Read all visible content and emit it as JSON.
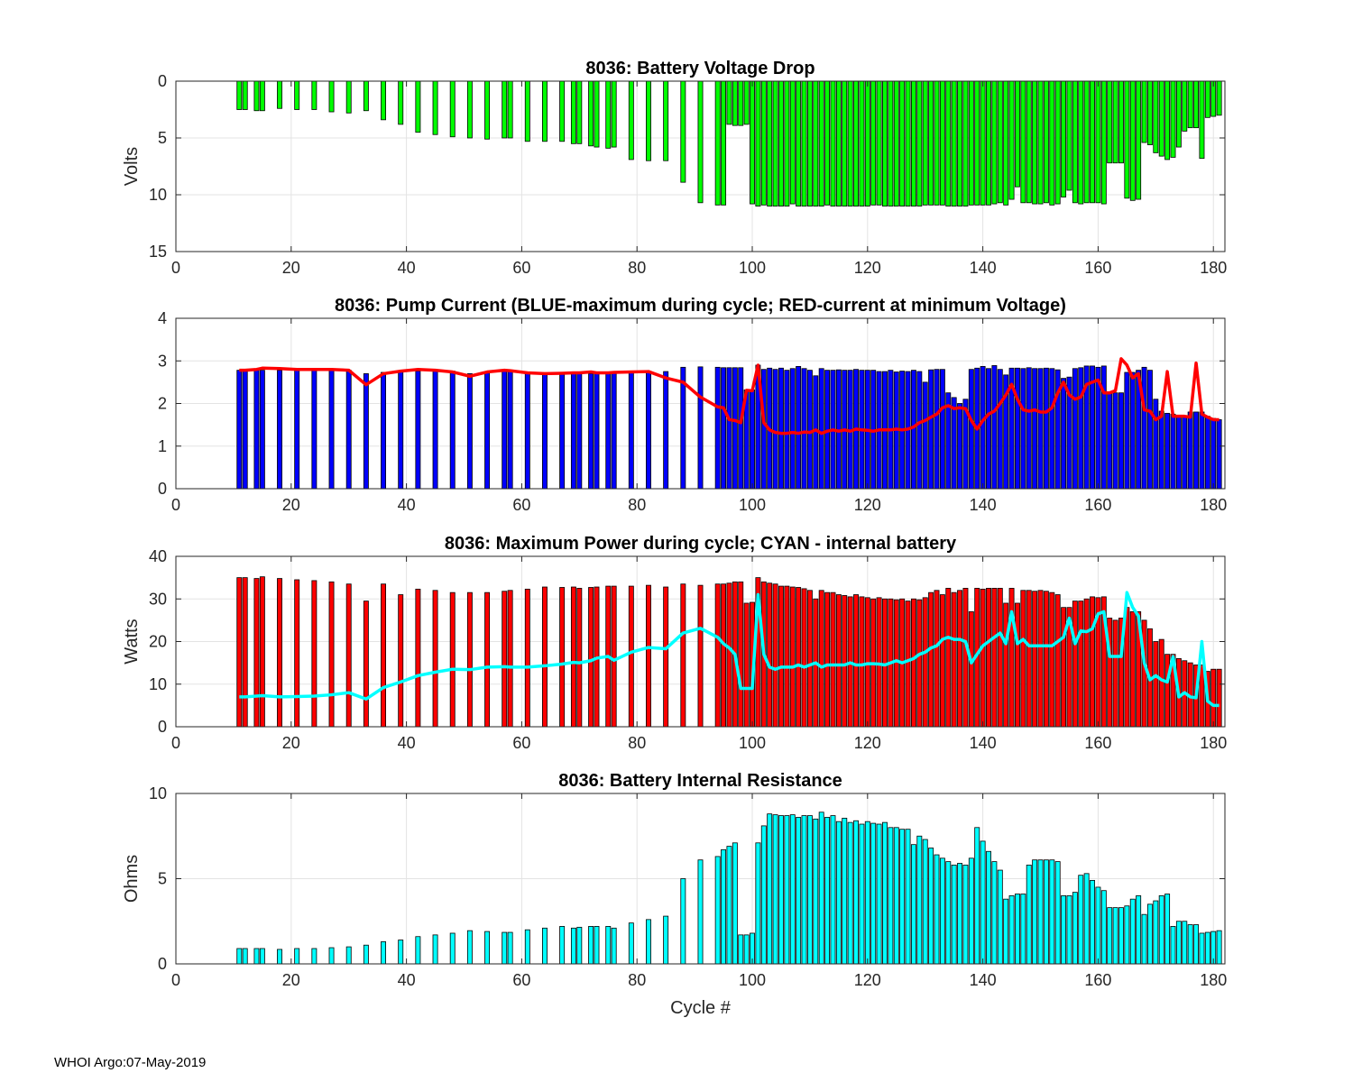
{
  "footer": "WHOI Argo:07-May-2019",
  "xlabel": "Cycle #",
  "chart_data": [
    {
      "type": "bar",
      "title": "8036: Battery Voltage Drop",
      "ylabel": "Volts",
      "xlim": [
        0,
        182
      ],
      "ylim": [
        0,
        15
      ],
      "y_reversed": true,
      "xticks": [
        0,
        20,
        40,
        60,
        80,
        100,
        120,
        140,
        160,
        180
      ],
      "yticks": [
        0,
        5,
        10,
        15
      ],
      "grid": true,
      "bar_color": "#00ff00",
      "x": [
        11,
        12,
        14,
        15,
        18,
        21,
        24,
        27,
        30,
        33,
        36,
        39,
        42,
        45,
        48,
        51,
        54,
        57,
        58,
        61,
        64,
        67,
        69,
        70,
        72,
        73,
        75,
        76,
        79,
        82,
        85,
        88,
        91,
        94,
        95,
        96,
        97,
        98,
        99,
        100,
        101,
        102,
        103,
        104,
        105,
        106,
        107,
        108,
        109,
        110,
        111,
        112,
        113,
        114,
        115,
        116,
        117,
        118,
        119,
        120,
        121,
        122,
        123,
        124,
        125,
        126,
        127,
        128,
        129,
        130,
        131,
        132,
        133,
        134,
        135,
        136,
        137,
        138,
        139,
        140,
        141,
        142,
        143,
        144,
        145,
        146,
        147,
        148,
        149,
        150,
        151,
        152,
        153,
        154,
        155,
        156,
        157,
        158,
        159,
        160,
        161,
        162,
        163,
        164,
        165,
        166,
        167,
        168,
        169,
        170,
        171,
        172,
        173,
        174,
        175,
        176,
        177,
        178,
        179,
        180,
        181
      ],
      "values": [
        2.5,
        2.5,
        2.6,
        2.6,
        2.4,
        2.5,
        2.5,
        2.7,
        2.8,
        2.6,
        3.4,
        3.8,
        4.5,
        4.7,
        4.9,
        5.0,
        5.1,
        5.0,
        5.0,
        5.3,
        5.3,
        5.3,
        5.5,
        5.5,
        5.7,
        5.8,
        5.9,
        5.8,
        6.9,
        7.0,
        7.0,
        8.9,
        10.7,
        10.9,
        10.9,
        3.8,
        3.9,
        3.9,
        3.8,
        10.8,
        11.0,
        10.9,
        11.0,
        11.0,
        11.0,
        11.0,
        10.8,
        11.0,
        11.0,
        11.0,
        11.0,
        11.0,
        10.9,
        11.0,
        11.0,
        11.0,
        11.0,
        11.0,
        11.0,
        11.0,
        10.9,
        10.9,
        11.0,
        11.0,
        11.0,
        11.0,
        11.0,
        11.0,
        11.0,
        10.9,
        10.9,
        10.9,
        10.9,
        11.0,
        11.0,
        11.0,
        11.0,
        10.9,
        10.9,
        10.9,
        10.9,
        10.8,
        10.7,
        10.9,
        10.4,
        9.3,
        10.7,
        10.7,
        10.8,
        10.8,
        10.7,
        10.9,
        10.8,
        10.2,
        9.6,
        10.7,
        10.8,
        10.7,
        10.7,
        10.7,
        10.8,
        7.2,
        7.2,
        7.2,
        10.3,
        10.5,
        10.4,
        5.4,
        5.6,
        6.3,
        6.6,
        6.9,
        6.7,
        5.8,
        4.4,
        4.1,
        4.1,
        6.8,
        3.2,
        3.1,
        3.0
      ]
    },
    {
      "type": "bar",
      "title": "8036: Pump Current (BLUE-maximum during cycle; RED-current at minimum Voltage)",
      "ylabel": "",
      "xlim": [
        0,
        182
      ],
      "ylim": [
        0,
        4
      ],
      "xticks": [
        0,
        20,
        40,
        60,
        80,
        100,
        120,
        140,
        160,
        180
      ],
      "yticks": [
        0,
        1,
        2,
        3,
        4
      ],
      "grid": true,
      "bar_color": "#0000ff",
      "line_color": "#ff0000",
      "x": [
        11,
        12,
        14,
        15,
        18,
        21,
        24,
        27,
        30,
        33,
        36,
        39,
        42,
        45,
        48,
        51,
        54,
        57,
        58,
        61,
        64,
        67,
        69,
        70,
        72,
        73,
        75,
        76,
        79,
        82,
        85,
        88,
        91,
        94,
        95,
        96,
        97,
        98,
        99,
        100,
        101,
        102,
        103,
        104,
        105,
        106,
        107,
        108,
        109,
        110,
        111,
        112,
        113,
        114,
        115,
        116,
        117,
        118,
        119,
        120,
        121,
        122,
        123,
        124,
        125,
        126,
        127,
        128,
        129,
        130,
        131,
        132,
        133,
        134,
        135,
        136,
        137,
        138,
        139,
        140,
        141,
        142,
        143,
        144,
        145,
        146,
        147,
        148,
        149,
        150,
        151,
        152,
        153,
        154,
        155,
        156,
        157,
        158,
        159,
        160,
        161,
        162,
        163,
        164,
        165,
        166,
        167,
        168,
        169,
        170,
        171,
        172,
        173,
        174,
        175,
        176,
        177,
        178,
        179,
        180,
        181
      ],
      "values": [
        2.78,
        2.78,
        2.78,
        2.78,
        2.78,
        2.78,
        2.78,
        2.78,
        2.78,
        2.7,
        2.73,
        2.75,
        2.76,
        2.76,
        2.76,
        2.7,
        2.75,
        2.76,
        2.76,
        2.74,
        2.72,
        2.71,
        2.7,
        2.7,
        2.7,
        2.72,
        2.72,
        2.73,
        2.74,
        2.75,
        2.75,
        2.85,
        2.86,
        2.85,
        2.84,
        2.84,
        2.84,
        2.84,
        2.32,
        2.32,
        2.9,
        2.8,
        2.83,
        2.8,
        2.83,
        2.78,
        2.82,
        2.87,
        2.82,
        2.78,
        2.65,
        2.82,
        2.78,
        2.78,
        2.79,
        2.78,
        2.78,
        2.8,
        2.78,
        2.78,
        2.78,
        2.75,
        2.75,
        2.78,
        2.74,
        2.76,
        2.75,
        2.78,
        2.75,
        2.5,
        2.79,
        2.8,
        2.8,
        2.25,
        2.14,
        2.0,
        2.1,
        2.8,
        2.83,
        2.87,
        2.82,
        2.89,
        2.8,
        2.67,
        2.83,
        2.83,
        2.82,
        2.84,
        2.82,
        2.82,
        2.83,
        2.82,
        2.79,
        2.59,
        2.62,
        2.82,
        2.84,
        2.88,
        2.88,
        2.85,
        2.88,
        2.27,
        2.25,
        2.25,
        2.73,
        2.73,
        2.78,
        2.85,
        2.78,
        2.1,
        1.82,
        1.77,
        1.75,
        1.7,
        1.69,
        1.8,
        1.8,
        1.8,
        1.7,
        1.65,
        1.62
      ],
      "line": [
        2.78,
        2.78,
        2.8,
        2.83,
        2.82,
        2.8,
        2.8,
        2.8,
        2.78,
        2.44,
        2.7,
        2.76,
        2.8,
        2.78,
        2.74,
        2.64,
        2.74,
        2.78,
        2.77,
        2.72,
        2.7,
        2.71,
        2.72,
        2.72,
        2.74,
        2.72,
        2.72,
        2.73,
        2.74,
        2.75,
        2.6,
        2.5,
        2.15,
        1.92,
        1.9,
        1.62,
        1.6,
        1.55,
        2.31,
        2.3,
        2.9,
        1.55,
        1.38,
        1.32,
        1.3,
        1.3,
        1.32,
        1.3,
        1.33,
        1.32,
        1.38,
        1.3,
        1.35,
        1.38,
        1.35,
        1.38,
        1.35,
        1.4,
        1.38,
        1.37,
        1.35,
        1.38,
        1.38,
        1.38,
        1.4,
        1.38,
        1.4,
        1.45,
        1.55,
        1.6,
        1.68,
        1.75,
        1.9,
        1.95,
        1.88,
        1.9,
        1.88,
        1.6,
        1.4,
        1.6,
        1.75,
        1.82,
        2.0,
        2.2,
        2.45,
        2.1,
        1.85,
        1.82,
        1.85,
        1.8,
        1.8,
        1.9,
        2.25,
        2.5,
        2.2,
        2.1,
        2.15,
        2.45,
        2.5,
        2.55,
        2.25,
        2.25,
        2.3,
        3.05,
        2.9,
        2.6,
        2.7,
        1.85,
        1.82,
        1.62,
        1.7,
        2.75,
        1.7,
        1.7,
        1.7,
        1.68,
        2.95,
        1.75,
        1.68,
        1.62,
        1.62
      ]
    },
    {
      "type": "bar",
      "title": "8036: Maximum Power during cycle; CYAN - internal battery",
      "ylabel": "Watts",
      "xlim": [
        0,
        182
      ],
      "ylim": [
        0,
        40
      ],
      "xticks": [
        0,
        20,
        40,
        60,
        80,
        100,
        120,
        140,
        160,
        180
      ],
      "yticks": [
        0,
        10,
        20,
        30,
        40
      ],
      "grid": true,
      "bar_color": "#ff0000",
      "line_color": "#00ffff",
      "x": [
        11,
        12,
        14,
        15,
        18,
        21,
        24,
        27,
        30,
        33,
        36,
        39,
        42,
        45,
        48,
        51,
        54,
        57,
        58,
        61,
        64,
        67,
        69,
        70,
        72,
        73,
        75,
        76,
        79,
        82,
        85,
        88,
        91,
        94,
        95,
        96,
        97,
        98,
        99,
        100,
        101,
        102,
        103,
        104,
        105,
        106,
        107,
        108,
        109,
        110,
        111,
        112,
        113,
        114,
        115,
        116,
        117,
        118,
        119,
        120,
        121,
        122,
        123,
        124,
        125,
        126,
        127,
        128,
        129,
        130,
        131,
        132,
        133,
        134,
        135,
        136,
        137,
        138,
        139,
        140,
        141,
        142,
        143,
        144,
        145,
        146,
        147,
        148,
        149,
        150,
        151,
        152,
        153,
        154,
        155,
        156,
        157,
        158,
        159,
        160,
        161,
        162,
        163,
        164,
        165,
        166,
        167,
        168,
        169,
        170,
        171,
        172,
        173,
        174,
        175,
        176,
        177,
        178,
        179,
        180,
        181
      ],
      "values": [
        35,
        35,
        34.8,
        35.2,
        34.8,
        34.5,
        34.3,
        34.0,
        33.5,
        29.5,
        33.5,
        31.0,
        32.3,
        32.0,
        31.5,
        31.5,
        31.5,
        31.8,
        32.0,
        32.3,
        32.8,
        32.7,
        32.8,
        32.5,
        32.7,
        32.8,
        33.0,
        33.0,
        33.0,
        33.2,
        32.8,
        33.5,
        33.2,
        33.5,
        33.5,
        33.7,
        34.0,
        34.0,
        29.0,
        29.2,
        35.0,
        34.0,
        33.7,
        33.5,
        33.0,
        33.0,
        32.8,
        32.7,
        32.4,
        32.0,
        30.0,
        32.0,
        31.5,
        31.5,
        31.0,
        30.8,
        30.5,
        31.0,
        30.5,
        30.3,
        30.0,
        30.3,
        30.0,
        30.0,
        29.8,
        30.0,
        29.5,
        30.0,
        29.8,
        30.3,
        31.5,
        32.0,
        31.0,
        32.5,
        31.5,
        32.0,
        32.5,
        27.0,
        32.5,
        32.3,
        32.5,
        32.5,
        32.5,
        29.0,
        32.5,
        29.0,
        32.0,
        32.0,
        31.8,
        32.0,
        31.8,
        31.5,
        31.0,
        28.0,
        28.0,
        29.5,
        29.5,
        30.0,
        30.5,
        30.3,
        30.5,
        25.5,
        25.0,
        25.5,
        28.0,
        27.0,
        27.0,
        25.0,
        23.0,
        20.0,
        20.5,
        17.0,
        17.0,
        16.0,
        15.5,
        15.0,
        14.5,
        14.5,
        13.0,
        13.5,
        13.5
      ],
      "line": [
        7.0,
        7.0,
        7.2,
        7.3,
        7.0,
        7.1,
        7.2,
        7.5,
        8.0,
        6.5,
        9.2,
        10.5,
        12.0,
        12.8,
        13.5,
        13.4,
        14.0,
        14.1,
        14.0,
        14.0,
        14.3,
        14.7,
        15.1,
        15.0,
        15.5,
        16.1,
        16.5,
        15.6,
        17.5,
        18.6,
        18.3,
        22.0,
        23.1,
        21.0,
        19.5,
        18.5,
        17.0,
        9.0,
        9.0,
        9.0,
        31.0,
        17.0,
        14.0,
        13.5,
        14.0,
        14.0,
        14.0,
        14.5,
        14.0,
        14.5,
        15.0,
        14.0,
        14.5,
        14.5,
        14.5,
        14.5,
        15.0,
        14.5,
        14.5,
        14.8,
        14.8,
        14.7,
        14.5,
        15.0,
        15.5,
        15.0,
        15.5,
        16.0,
        17.0,
        17.5,
        18.5,
        19.0,
        20.5,
        21.0,
        20.5,
        20.5,
        20.0,
        15.0,
        17.0,
        19.0,
        20.0,
        21.0,
        22.0,
        19.5,
        27.0,
        19.5,
        20.5,
        19.0,
        19.0,
        19.0,
        19.0,
        19.0,
        20.0,
        21.0,
        25.5,
        19.5,
        22.5,
        22.3,
        23.0,
        26.5,
        27.0,
        16.5,
        16.5,
        16.5,
        31.5,
        28.0,
        26.0,
        15.0,
        11.0,
        12.0,
        11.0,
        10.5,
        16.5,
        7.0,
        8.0,
        7.0,
        6.8,
        20.0,
        6.0,
        5.0,
        5.0
      ]
    },
    {
      "type": "bar",
      "title": "8036: Battery Internal Resistance",
      "ylabel": "Ohms",
      "xlabel": "Cycle #",
      "xlim": [
        0,
        182
      ],
      "ylim": [
        0,
        10
      ],
      "xticks": [
        0,
        20,
        40,
        60,
        80,
        100,
        120,
        140,
        160,
        180
      ],
      "yticks": [
        0,
        5,
        10
      ],
      "grid": true,
      "bar_color": "#00ffff",
      "x": [
        11,
        12,
        14,
        15,
        18,
        21,
        24,
        27,
        30,
        33,
        36,
        39,
        42,
        45,
        48,
        51,
        54,
        57,
        58,
        61,
        64,
        67,
        69,
        70,
        72,
        73,
        75,
        76,
        79,
        82,
        85,
        88,
        91,
        94,
        95,
        96,
        97,
        98,
        99,
        100,
        101,
        102,
        103,
        104,
        105,
        106,
        107,
        108,
        109,
        110,
        111,
        112,
        113,
        114,
        115,
        116,
        117,
        118,
        119,
        120,
        121,
        122,
        123,
        124,
        125,
        126,
        127,
        128,
        129,
        130,
        131,
        132,
        133,
        134,
        135,
        136,
        137,
        138,
        139,
        140,
        141,
        142,
        143,
        144,
        145,
        146,
        147,
        148,
        149,
        150,
        151,
        152,
        153,
        154,
        155,
        156,
        157,
        158,
        159,
        160,
        161,
        162,
        163,
        164,
        165,
        166,
        167,
        168,
        169,
        170,
        171,
        172,
        173,
        174,
        175,
        176,
        177,
        178,
        179,
        180,
        181
      ],
      "values": [
        0.9,
        0.9,
        0.9,
        0.9,
        0.85,
        0.9,
        0.9,
        0.95,
        1.0,
        1.1,
        1.3,
        1.4,
        1.6,
        1.7,
        1.8,
        1.95,
        1.9,
        1.85,
        1.85,
        2.0,
        2.1,
        2.2,
        2.1,
        2.15,
        2.2,
        2.2,
        2.2,
        2.1,
        2.4,
        2.6,
        2.8,
        5.0,
        6.1,
        6.3,
        6.7,
        6.9,
        7.1,
        1.7,
        1.7,
        1.8,
        7.1,
        8.1,
        8.8,
        8.75,
        8.7,
        8.7,
        8.75,
        8.6,
        8.7,
        8.7,
        8.5,
        8.9,
        8.6,
        8.7,
        8.35,
        8.55,
        8.3,
        8.4,
        8.2,
        8.35,
        8.25,
        8.2,
        8.3,
        8.0,
        8.0,
        7.9,
        7.9,
        7.0,
        7.5,
        7.3,
        6.8,
        6.4,
        6.2,
        6.0,
        5.8,
        5.9,
        5.8,
        6.2,
        8.0,
        7.2,
        6.6,
        6.0,
        5.5,
        3.8,
        4.0,
        4.1,
        4.1,
        5.8,
        6.1,
        6.1,
        6.1,
        6.1,
        6.0,
        4.0,
        4.0,
        4.2,
        5.2,
        5.3,
        4.9,
        4.5,
        4.3,
        3.3,
        3.3,
        3.3,
        3.4,
        3.8,
        4.0,
        2.9,
        3.5,
        3.7,
        4.0,
        4.1,
        2.2,
        2.5,
        2.5,
        2.3,
        2.3,
        1.8,
        1.85,
        1.9,
        1.95
      ]
    }
  ]
}
